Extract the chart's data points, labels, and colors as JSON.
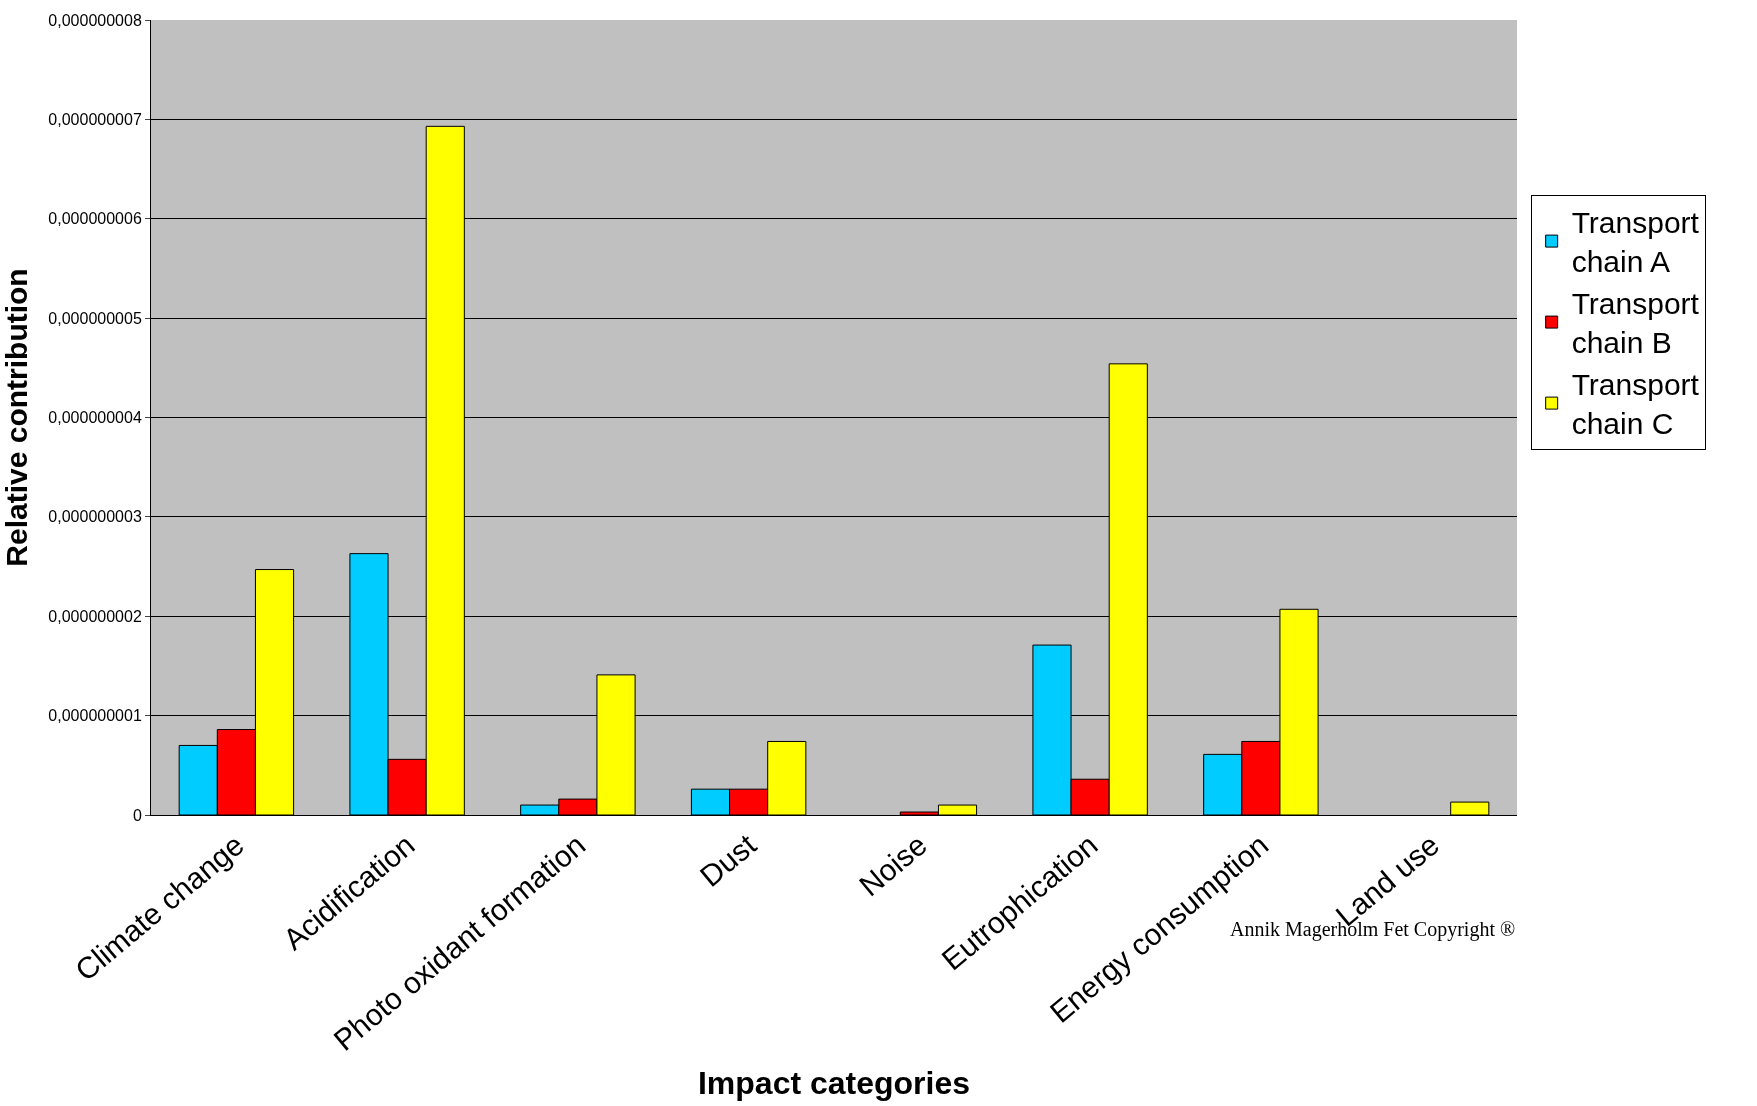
{
  "chart_data": {
    "type": "bar",
    "xlabel": "Impact categories",
    "ylabel": "Relative contribution",
    "categories": [
      "Climate change",
      "Acidification",
      "Photo oxidant formation",
      "Dust",
      "Noise",
      "Eutrophication",
      "Energy consumption",
      "Land use"
    ],
    "series": [
      {
        "name": "Transport chain A",
        "color": "#00ccff",
        "values": [
          7e-10,
          2.63e-09,
          1e-10,
          2.6e-10,
          null,
          1.71e-09,
          6.1e-10,
          null
        ]
      },
      {
        "name": "Transport chain B",
        "color": "#ff0000",
        "values": [
          8.6e-10,
          5.6e-10,
          1.6e-10,
          2.6e-10,
          3e-11,
          3.6e-10,
          7.4e-10,
          null
        ]
      },
      {
        "name": "Transport chain C",
        "color": "#ffff00",
        "values": [
          2.47e-09,
          6.93e-09,
          1.41e-09,
          7.4e-10,
          1e-10,
          4.54e-09,
          2.07e-09,
          1.3e-10
        ]
      }
    ],
    "ylim": [
      0,
      8e-09
    ],
    "yticks": [
      0,
      {
        "value": 1e-09,
        "label": "0,000000001"
      },
      {
        "value": 2e-09,
        "label": "0,000000002"
      },
      {
        "value": 3e-09,
        "label": "0,000000003"
      },
      {
        "value": 4e-09,
        "label": "0,000000004"
      },
      {
        "value": 5e-09,
        "label": "0,000000005"
      },
      {
        "value": 6e-09,
        "label": "0,000000006"
      },
      {
        "value": 7e-09,
        "label": "0,000000007"
      },
      {
        "value": 8e-09,
        "label": "0,000000008"
      }
    ],
    "grid": "y",
    "legend": "right",
    "annotations": [
      "Annik Magerholm Fet Copyright ®"
    ]
  }
}
